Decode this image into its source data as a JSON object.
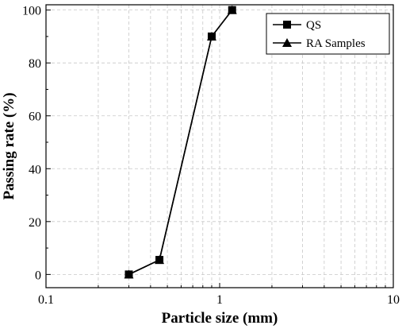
{
  "chart_data": {
    "type": "line",
    "xlabel": "Particle size (mm)",
    "ylabel": "Passing rate (%)",
    "x_scale": "log",
    "xlim": [
      0.1,
      10
    ],
    "ylim": [
      -5,
      102
    ],
    "x_ticks": [
      0.1,
      1,
      10
    ],
    "x_tick_labels": [
      "0.1",
      "1",
      "10"
    ],
    "y_ticks": [
      0,
      20,
      40,
      60,
      80,
      100
    ],
    "y_tick_labels": [
      "0",
      "20",
      "40",
      "60",
      "80",
      "100"
    ],
    "grid": true,
    "legend_position": "top-right",
    "series": [
      {
        "name": "QS",
        "marker": "square",
        "x": [
          0.3,
          0.45,
          0.9,
          1.18
        ],
        "values": [
          0,
          5.5,
          90,
          100
        ]
      },
      {
        "name": "RA Samples",
        "marker": "triangle",
        "x": [
          0.3,
          0.45,
          0.9,
          1.18
        ],
        "values": [
          0,
          5.5,
          90,
          100
        ]
      }
    ]
  }
}
